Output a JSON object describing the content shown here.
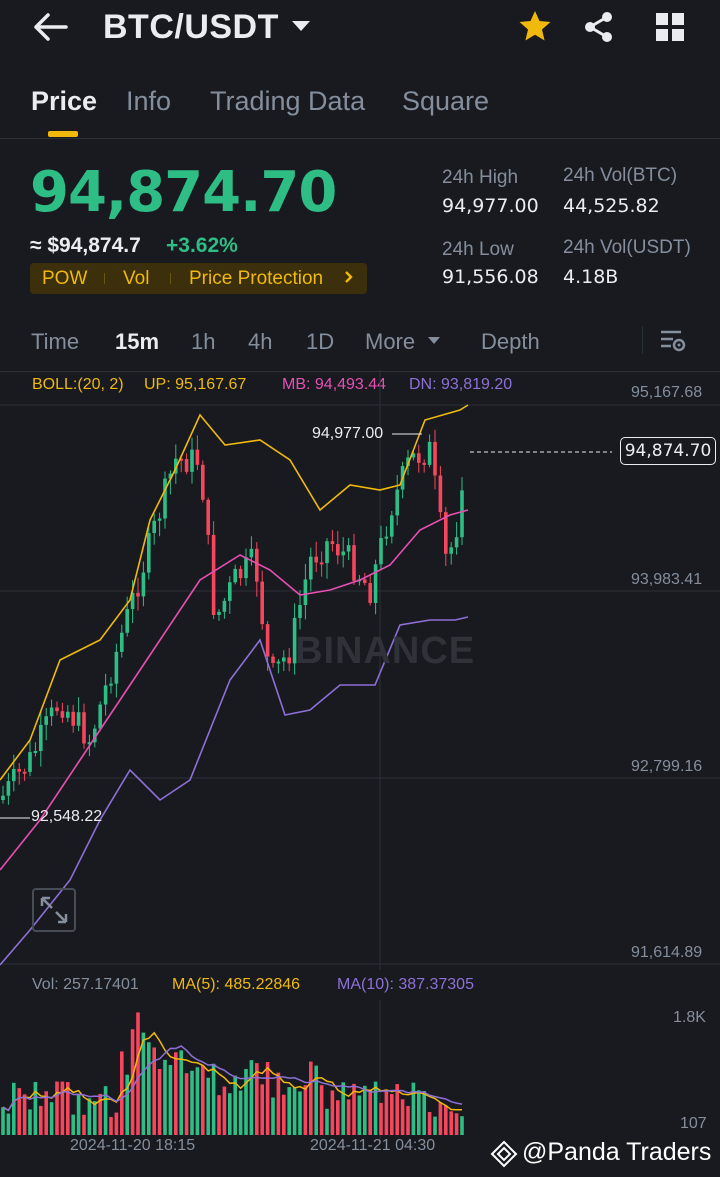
{
  "header": {
    "pair": "BTC/USDT",
    "icons": {
      "back": "back-arrow-icon",
      "dropdown": "caret-down-icon",
      "favorite": "star-icon",
      "share": "share-icon",
      "grid": "grid-icon"
    },
    "favorite_color": "#f0b90b"
  },
  "tabs": [
    "Price",
    "Info",
    "Trading Data",
    "Square"
  ],
  "ticker": {
    "last_price": "94,874.70",
    "approx_usd": "≈ $94,874.7",
    "change_pct": "+3.62%",
    "tags": [
      "POW",
      "Vol",
      "Price Protection"
    ],
    "stats": {
      "high_label": "24h High",
      "high": "94,977.00",
      "low_label": "24h Low",
      "low": "91,556.08",
      "vol_btc_label": "24h Vol(BTC)",
      "vol_btc": "44,525.82",
      "vol_usdt_label": "24h Vol(USDT)",
      "vol_usdt": "4.18B"
    }
  },
  "timeframes": {
    "items": [
      "Time",
      "15m",
      "1h",
      "4h",
      "1D",
      "More",
      "Depth"
    ],
    "active": "15m"
  },
  "boll": {
    "label": "BOLL:(20, 2)",
    "up": "UP: 95,167.67",
    "mb": "MB: 94,493.44",
    "dn": "DN: 93,819.20"
  },
  "volume_legend": {
    "vol": "Vol: 257.17401",
    "ma5": "MA(5): 485.22846",
    "ma10": "MA(10): 387.37305"
  },
  "chart_data": {
    "type": "candlestick",
    "title": "",
    "y_axis_ticks": [
      "95,167.68",
      "93,983.41",
      "92,799.16",
      "91,614.89"
    ],
    "ylim": [
      91614.89,
      95167.68
    ],
    "high_marker": "94,977.00",
    "low_marker": "92,548.22",
    "last_price_tag": "94,874.70",
    "volume_axis_ticks": [
      "1.8K",
      "107"
    ],
    "x_tick_labels": [
      "2024-11-20 18:15",
      "2024-11-21 04:30"
    ],
    "watermark": "BINANCE",
    "colors": {
      "up": "#2ebd85",
      "down": "#f6465d",
      "boll_up": "#f0b90b",
      "boll_mb": "#e74fb3",
      "boll_dn": "#8e70d6"
    },
    "grid": true
  },
  "footer_watermark": "@Panda Traders"
}
